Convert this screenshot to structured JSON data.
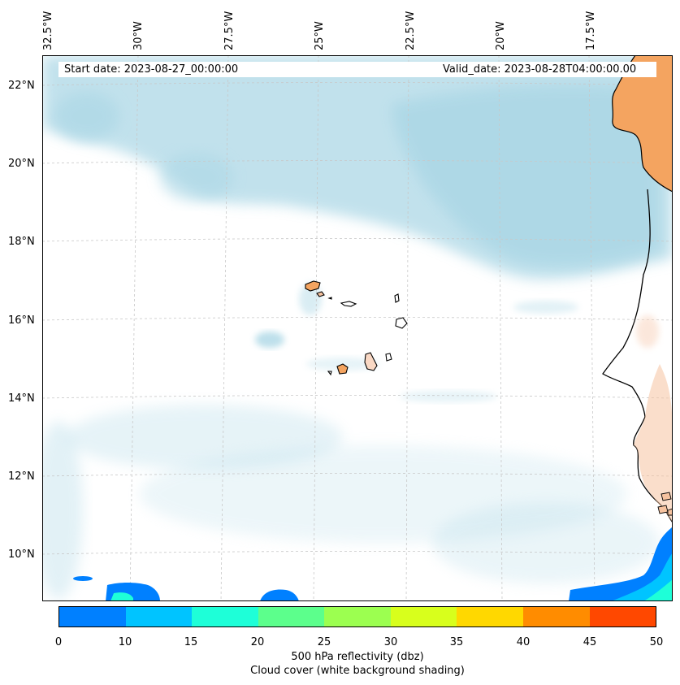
{
  "map": {
    "start_label": "Start date: 2023-08-27_00:00:00",
    "valid_label": "Valid_date: 2023-08-28T04:00:00.00",
    "lon_labels": [
      "32.5°W",
      "30°W",
      "27.5°W",
      "25°W",
      "22.5°W",
      "20°W",
      "17.5°W"
    ],
    "lat_labels": [
      "22°N",
      "20°N",
      "18°N",
      "16°N",
      "14°N",
      "12°N",
      "10°N"
    ],
    "colors": {
      "cloud": "#add8e6",
      "land": "#f4a460",
      "coast": "#000000",
      "grid": "#c8c8c8"
    }
  },
  "colorbar": {
    "ticks": [
      "0",
      "10",
      "15",
      "20",
      "25",
      "30",
      "35",
      "40",
      "45",
      "50"
    ],
    "colors": [
      "#0080ff",
      "#00c4ff",
      "#1effd8",
      "#5cff8c",
      "#9cff50",
      "#d8ff1c",
      "#ffd800",
      "#ff8c00",
      "#ff4800"
    ],
    "title_line1": "500 hPa reflectivity (dbz)",
    "title_line2": "Cloud cover (white background shading)"
  }
}
